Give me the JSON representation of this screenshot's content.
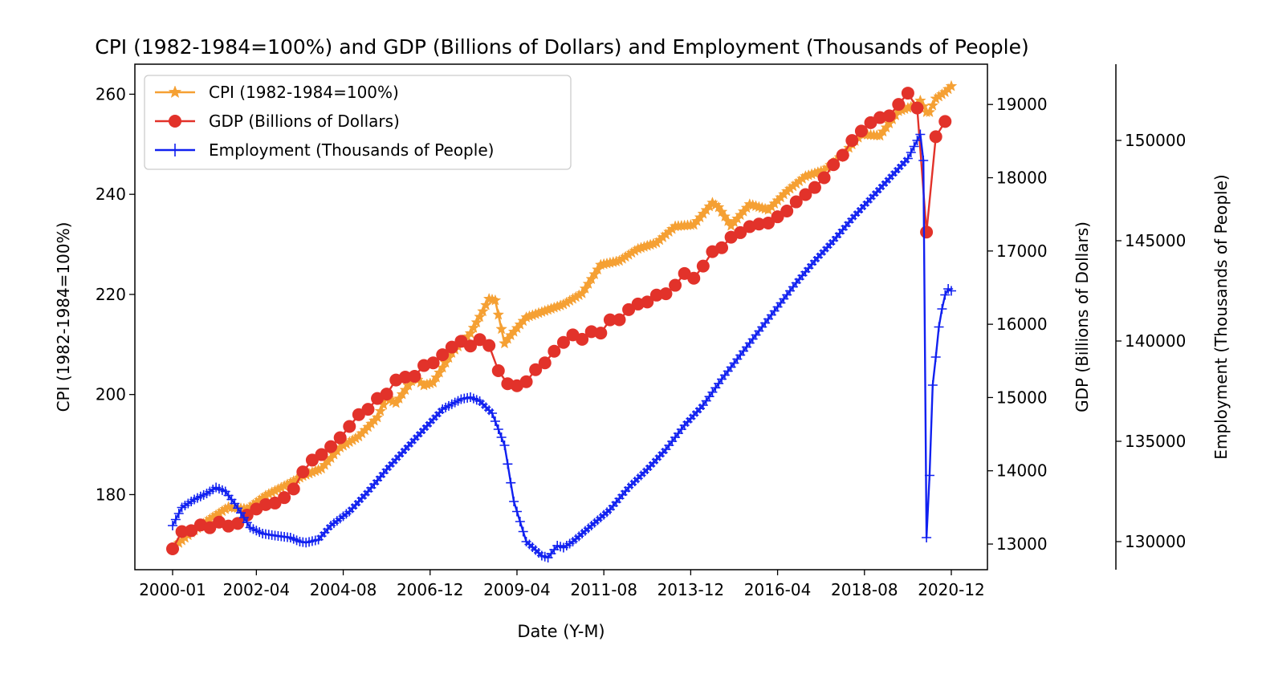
{
  "chart_data": {
    "type": "line",
    "title": "CPI (1982-1984=100%) and GDP (Billions of Dollars) and Employment (Thousands of People)",
    "xlabel": "Date (Y-M)",
    "x_ticks": [
      "2000-01",
      "2002-04",
      "2004-08",
      "2006-12",
      "2009-04",
      "2011-08",
      "2013-12",
      "2016-04",
      "2018-08",
      "2020-12"
    ],
    "x_range": [
      "2000-01",
      "2020-12"
    ],
    "legend": {
      "placement": "upper-left"
    },
    "grid": false,
    "axes": [
      {
        "id": "cpi",
        "side": "left",
        "label": "CPI (1982-1984=100%)",
        "range": [
          165,
          266
        ],
        "ticks": [
          180,
          200,
          220,
          240,
          260
        ]
      },
      {
        "id": "gdp",
        "side": "right",
        "label": "GDP (Billions of Dollars)",
        "range": [
          12650,
          19550
        ],
        "ticks": [
          13000,
          14000,
          15000,
          16000,
          17000,
          18000,
          19000
        ]
      },
      {
        "id": "emp",
        "side": "right-outer",
        "label": "Employment (Thousands of People)",
        "range": [
          128600,
          153800
        ],
        "ticks": [
          130000,
          135000,
          140000,
          145000,
          150000
        ]
      }
    ],
    "series": [
      {
        "name": "CPI (1982-1984=100%)",
        "axis": "cpi",
        "color": "#f5a033",
        "marker": "star",
        "frequency": "monthly",
        "x": [
          "2000-01",
          "2000-07",
          "2001-01",
          "2001-07",
          "2002-01",
          "2002-07",
          "2003-01",
          "2003-07",
          "2004-01",
          "2004-07",
          "2005-01",
          "2005-07",
          "2005-10",
          "2006-01",
          "2006-07",
          "2006-10",
          "2007-01",
          "2007-07",
          "2008-01",
          "2008-05",
          "2008-07",
          "2008-09",
          "2008-12",
          "2009-01",
          "2009-07",
          "2010-01",
          "2010-07",
          "2011-01",
          "2011-07",
          "2012-01",
          "2012-07",
          "2013-01",
          "2013-07",
          "2014-01",
          "2014-07",
          "2014-09",
          "2015-01",
          "2015-07",
          "2016-01",
          "2016-07",
          "2017-01",
          "2017-07",
          "2018-01",
          "2018-07",
          "2019-01",
          "2019-07",
          "2020-01",
          "2020-02",
          "2020-04",
          "2020-05",
          "2020-07",
          "2020-10",
          "2020-12"
        ],
        "values": [
          169.3,
          172.4,
          175.1,
          177.5,
          177.1,
          179.8,
          181.7,
          183.7,
          185.2,
          189.4,
          191.6,
          195.4,
          199.2,
          198.3,
          203.5,
          201.8,
          202.4,
          208.3,
          212.2,
          216.6,
          219.1,
          218.8,
          210.2,
          211.1,
          215.4,
          216.7,
          218.0,
          220.2,
          225.9,
          226.7,
          229.1,
          230.3,
          233.6,
          233.9,
          238.3,
          237.4,
          233.7,
          238.0,
          236.9,
          240.6,
          243.6,
          244.8,
          247.9,
          252.0,
          251.7,
          256.6,
          257.9,
          258.7,
          256.4,
          256.4,
          259.1,
          260.4,
          261.6
        ]
      },
      {
        "name": "GDP (Billions of Dollars)",
        "axis": "gdp",
        "color": "#e2322a",
        "marker": "circle",
        "frequency": "quarterly",
        "x": [
          "2000-01",
          "2000-04",
          "2000-07",
          "2000-10",
          "2001-01",
          "2001-04",
          "2001-07",
          "2001-10",
          "2002-01",
          "2002-04",
          "2002-07",
          "2002-10",
          "2003-01",
          "2003-04",
          "2003-07",
          "2003-10",
          "2004-01",
          "2004-04",
          "2004-07",
          "2004-10",
          "2005-01",
          "2005-04",
          "2005-07",
          "2005-10",
          "2006-01",
          "2006-04",
          "2006-07",
          "2006-10",
          "2007-01",
          "2007-04",
          "2007-07",
          "2007-10",
          "2008-01",
          "2008-04",
          "2008-07",
          "2008-10",
          "2009-01",
          "2009-04",
          "2009-07",
          "2009-10",
          "2010-01",
          "2010-04",
          "2010-07",
          "2010-10",
          "2011-01",
          "2011-04",
          "2011-07",
          "2011-10",
          "2012-01",
          "2012-04",
          "2012-07",
          "2012-10",
          "2013-01",
          "2013-04",
          "2013-07",
          "2013-10",
          "2014-01",
          "2014-04",
          "2014-07",
          "2014-10",
          "2015-01",
          "2015-04",
          "2015-07",
          "2015-10",
          "2016-01",
          "2016-04",
          "2016-07",
          "2016-10",
          "2017-01",
          "2017-04",
          "2017-07",
          "2017-10",
          "2018-01",
          "2018-04",
          "2018-07",
          "2018-10",
          "2019-01",
          "2019-04",
          "2019-07",
          "2019-10",
          "2020-01",
          "2020-04",
          "2020-07",
          "2020-10"
        ],
        "values": [
          12935,
          13170,
          13183,
          13260,
          13223,
          13299,
          13245,
          13281,
          13395,
          13478,
          13539,
          13560,
          13634,
          13752,
          13985,
          14146,
          14221,
          14330,
          14451,
          14605,
          14767,
          14839,
          14987,
          15047,
          15239,
          15278,
          15290,
          15437,
          15473,
          15584,
          15688,
          15768,
          15703,
          15790,
          15710,
          15366,
          15188,
          15161,
          15216,
          15380,
          15473,
          15632,
          15752,
          15855,
          15795,
          15899,
          15880,
          16060,
          16062,
          16200,
          16276,
          16304,
          16398,
          16416,
          16532,
          16693,
          16629,
          16794,
          16991,
          17045,
          17189,
          17251,
          17333,
          17368,
          17382,
          17467,
          17546,
          17671,
          17770,
          17867,
          18000,
          18178,
          18308,
          18508,
          18637,
          18752,
          18821,
          18845,
          19001,
          19155,
          18952,
          17258,
          18560,
          18768
        ]
      },
      {
        "name": "Employment (Thousands of People)",
        "axis": "emp",
        "color": "#1020f0",
        "marker": "plus",
        "frequency": "monthly",
        "x": [
          "2000-01",
          "2000-04",
          "2000-08",
          "2000-12",
          "2001-03",
          "2001-06",
          "2001-09",
          "2001-12",
          "2002-02",
          "2002-06",
          "2002-10",
          "2003-03",
          "2003-06",
          "2003-08",
          "2003-12",
          "2004-04",
          "2004-10",
          "2005-04",
          "2005-10",
          "2006-04",
          "2006-10",
          "2007-04",
          "2007-10",
          "2008-01",
          "2008-04",
          "2008-08",
          "2008-12",
          "2009-03",
          "2009-07",
          "2009-12",
          "2010-02",
          "2010-05",
          "2010-07",
          "2010-10",
          "2011-04",
          "2011-10",
          "2012-04",
          "2012-10",
          "2013-04",
          "2013-10",
          "2014-04",
          "2014-10",
          "2015-04",
          "2015-10",
          "2016-04",
          "2016-10",
          "2017-04",
          "2017-10",
          "2018-04",
          "2018-10",
          "2019-04",
          "2019-10",
          "2020-02",
          "2020-03",
          "2020-04",
          "2020-05",
          "2020-06",
          "2020-07",
          "2020-08",
          "2020-09",
          "2020-10",
          "2020-11",
          "2020-12"
        ],
        "values": [
          130800,
          131700,
          132100,
          132400,
          132700,
          132500,
          131900,
          131200,
          130700,
          130400,
          130300,
          130200,
          130000,
          129950,
          130100,
          130800,
          131500,
          132500,
          133600,
          134600,
          135600,
          136600,
          137100,
          137200,
          137000,
          136400,
          134800,
          132000,
          130000,
          129300,
          129200,
          129800,
          129700,
          130000,
          130800,
          131600,
          132700,
          133600,
          134600,
          135800,
          136800,
          138100,
          139300,
          140500,
          141700,
          142900,
          144000,
          145000,
          146100,
          147100,
          148100,
          149100,
          150300,
          149000,
          130200,
          133300,
          137800,
          139200,
          140700,
          141600,
          142300,
          142600,
          142500
        ]
      }
    ]
  }
}
